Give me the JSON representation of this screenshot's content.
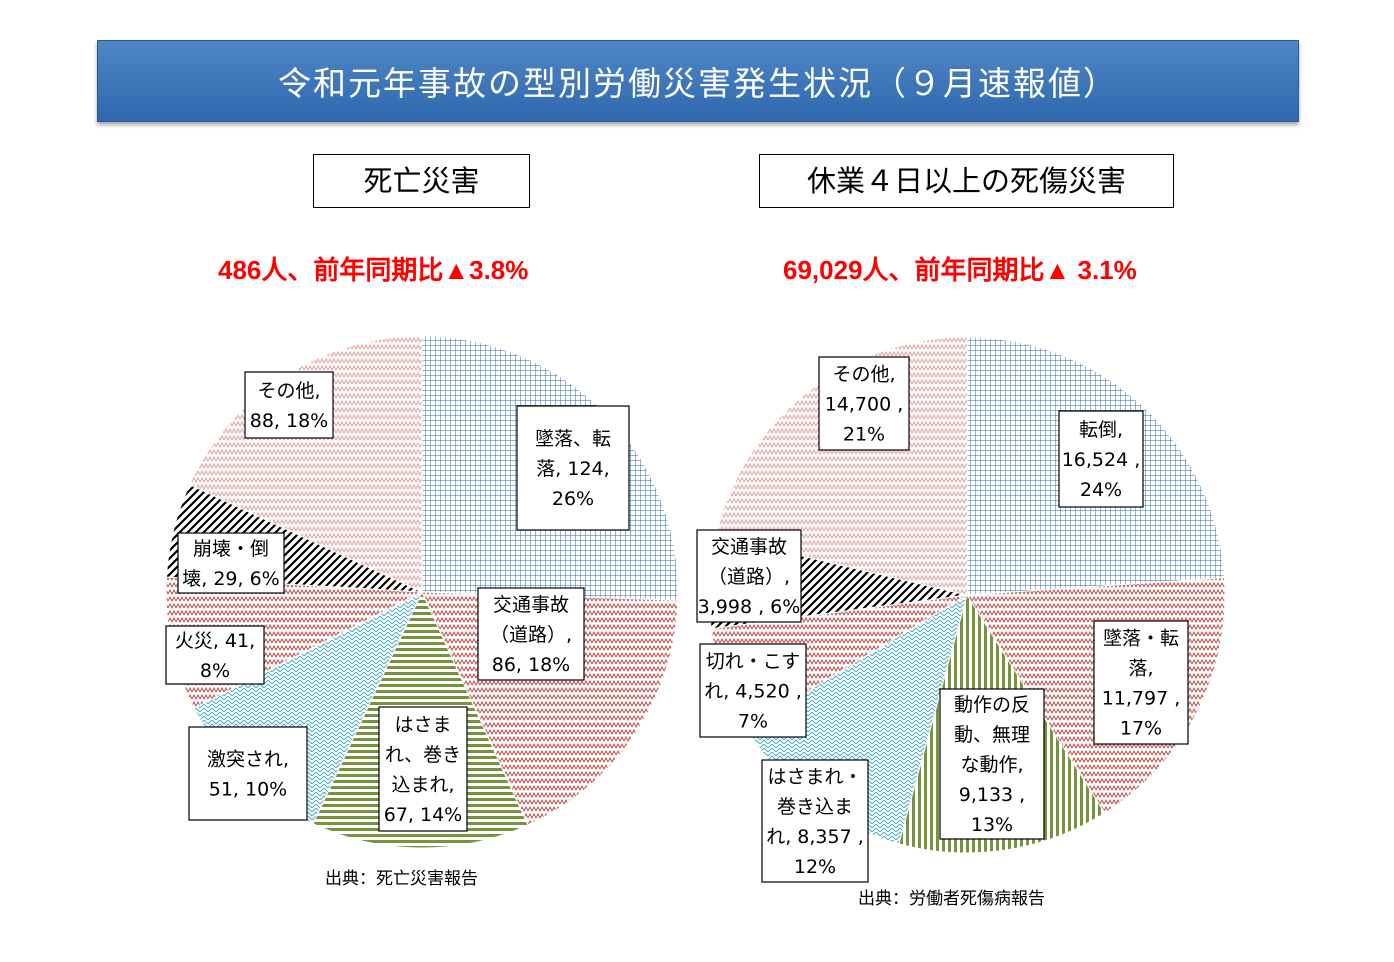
{
  "header": {
    "title": "令和元年事故の型別労働災害発生状況（９月速報値）"
  },
  "chart_data": [
    {
      "type": "pie",
      "title": "死亡災害",
      "subtitle": "486人、前年同期比▲3.8%",
      "source": "出典：死亡災害報告",
      "slices": [
        {
          "name": "墜落、転落",
          "value": 124,
          "percent": "26%",
          "label": [
            "墜落、転",
            "落, 124,",
            "26%"
          ],
          "color": "#4f81bd",
          "pattern": "grid"
        },
        {
          "name": "交通事故（道路）",
          "value": 86,
          "percent": "18%",
          "label": [
            "交通事故",
            "（道路）,",
            "86, 18%"
          ],
          "color": "#c0504d",
          "pattern": "wave"
        },
        {
          "name": "はさまれ、巻き込まれ",
          "value": 67,
          "percent": "14%",
          "label": [
            "はさま",
            "れ、巻き",
            "込まれ,",
            "67, 14%"
          ],
          "color": "#77933c",
          "pattern": "hstripe"
        },
        {
          "name": "激突され",
          "value": 51,
          "percent": "10%",
          "label": [
            "激突され,",
            "51, 10%"
          ],
          "color": "#4bacc6",
          "pattern": "zigzag"
        },
        {
          "name": "火災",
          "value": 41,
          "percent": "8%",
          "label": [
            "火災, 41,",
            "8%"
          ],
          "color": "#c0504d",
          "pattern": "wave"
        },
        {
          "name": "崩壊・倒壊",
          "value": 29,
          "percent": "6%",
          "label": [
            "崩壊・倒",
            "壊, 29, 6%"
          ],
          "color": "#000000",
          "pattern": "diag"
        },
        {
          "name": "その他",
          "value": 88,
          "percent": "18%",
          "label": [
            "その他,",
            "88, 18%"
          ],
          "color": "#e6a0a0",
          "pattern": "wave"
        }
      ]
    },
    {
      "type": "pie",
      "title": "休業４日以上の死傷災害",
      "subtitle": "69,029人、前年同期比▲ 3.1%",
      "source": "出典：労働者死傷病報告",
      "slices": [
        {
          "name": "転倒",
          "value": 16524,
          "percent": "24%",
          "label": [
            "転倒,",
            "16,524 ,",
            "24%"
          ],
          "color": "#4f81bd",
          "pattern": "grid"
        },
        {
          "name": "墜落・転落",
          "value": 11797,
          "percent": "17%",
          "label": [
            "墜落・転",
            "落,",
            "11,797 ,",
            "17%"
          ],
          "color": "#c0504d",
          "pattern": "wave"
        },
        {
          "name": "動作の反動、無理な動作",
          "value": 9133,
          "percent": "13%",
          "label": [
            "動作の反",
            "動、無理",
            "な動作,",
            "9,133 ,",
            "13%"
          ],
          "color": "#77933c",
          "pattern": "vstripe"
        },
        {
          "name": "はさまれ・巻き込まれ",
          "value": 8357,
          "percent": "12%",
          "label": [
            "はさまれ・",
            "巻き込ま",
            "れ, 8,357 ,",
            "12%"
          ],
          "color": "#4bacc6",
          "pattern": "zigzag"
        },
        {
          "name": "切れ・こすれ",
          "value": 4520,
          "percent": "7%",
          "label": [
            "切れ・こす",
            "れ, 4,520 ,",
            "7%"
          ],
          "color": "#c0504d",
          "pattern": "wave"
        },
        {
          "name": "交通事故（道路）",
          "value": 3998,
          "percent": "6%",
          "label": [
            "交通事故",
            "（道路）,",
            "3,998 , 6%"
          ],
          "color": "#000000",
          "pattern": "diag"
        },
        {
          "name": "その他",
          "value": 14700,
          "percent": "21%",
          "label": [
            "その他,",
            "14,700 ,",
            "21%"
          ],
          "color": "#e6a0a0",
          "pattern": "wave"
        }
      ]
    }
  ]
}
